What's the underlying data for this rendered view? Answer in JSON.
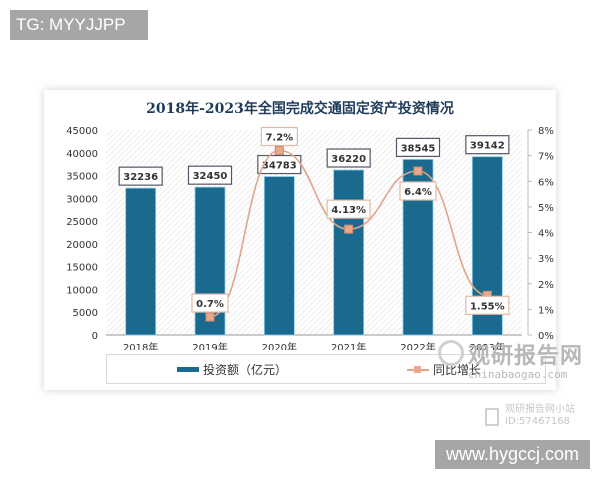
{
  "badges": {
    "top_left": "TG: MYYJJPP",
    "bottom_right": "www.hygccj.com"
  },
  "watermark": {
    "main": "观研报告网",
    "sub": "chinabaogao.com",
    "wechat_line1": "观研报告网小站",
    "wechat_line2": "ID:57467168"
  },
  "colors": {
    "bar": "#1a6a8f",
    "line": "#e0a68a",
    "marker": "#e8a88a",
    "title": "#1f3b5a"
  },
  "chart_data": {
    "type": "bar+line",
    "title": "2018年-2023年全国完成交通固定资产投资情况",
    "categories": [
      "2018年",
      "2019年",
      "2020年",
      "2021年",
      "2022年",
      "2023年"
    ],
    "series": [
      {
        "name": "投资额（亿元）",
        "type": "bar",
        "axis": "left",
        "values": [
          32236,
          32450,
          34783,
          36220,
          38545,
          39142
        ],
        "labels": [
          "32236",
          "32450",
          "34783",
          "36220",
          "38545",
          "39142"
        ]
      },
      {
        "name": "同比增长",
        "type": "line",
        "axis": "right",
        "values": [
          null,
          0.7,
          7.2,
          4.13,
          6.4,
          1.55
        ],
        "labels": [
          "",
          "0.7%",
          "7.2%",
          "4.13%",
          "6.4%",
          "1.55%"
        ]
      }
    ],
    "y_left": {
      "ticks": [
        "0",
        "5000",
        "10000",
        "15000",
        "20000",
        "25000",
        "30000",
        "35000",
        "40000",
        "45000"
      ],
      "ylim": [
        0,
        45000
      ]
    },
    "y_right": {
      "ticks": [
        "0%",
        "1%",
        "2%",
        "3%",
        "4%",
        "5%",
        "6%",
        "7%",
        "8%"
      ],
      "ylim": [
        0,
        8
      ]
    },
    "legend": [
      {
        "label": "投资额（亿元）",
        "kind": "bar"
      },
      {
        "label": "同比增长",
        "kind": "line"
      }
    ],
    "legend_position": "bottom",
    "grid": false
  }
}
